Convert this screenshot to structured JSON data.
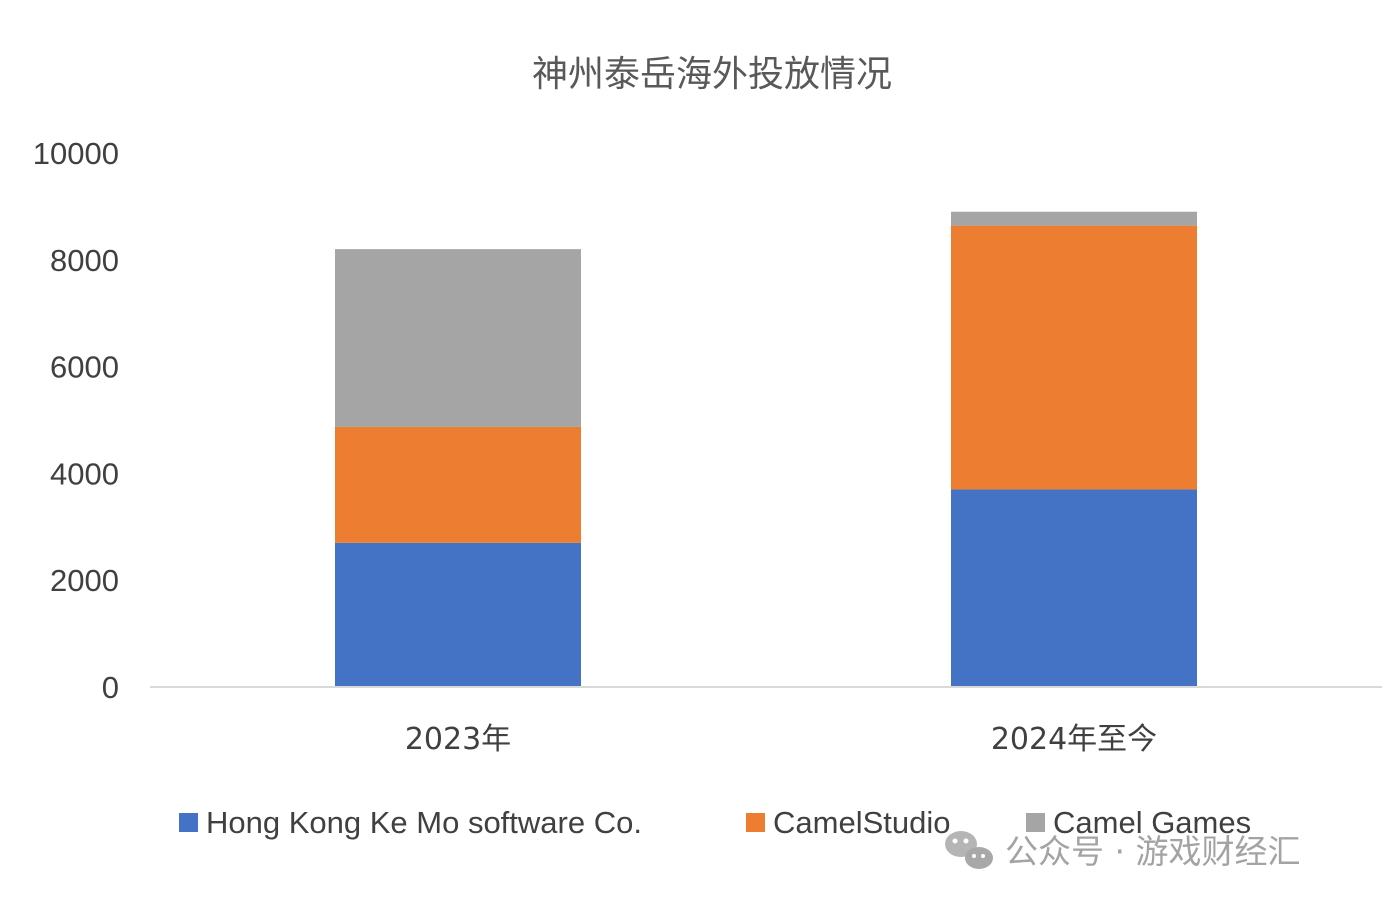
{
  "chart_data": {
    "type": "bar",
    "stacked": true,
    "title": "神州泰岳海外投放情况",
    "categories": [
      "2023年",
      "2024年至今"
    ],
    "series": [
      {
        "name": "Hong Kong Ke Mo software Co.",
        "color": "#4472C4",
        "values": [
          2700,
          3700
        ]
      },
      {
        "name": "CamelStudio",
        "color": "#ED7D31",
        "values": [
          2170,
          4940
        ]
      },
      {
        "name": "Camel Games",
        "color": "#A5A5A5",
        "values": [
          3330,
          260
        ]
      }
    ],
    "ylim": [
      0,
      10000
    ],
    "yticks": [
      0,
      2000,
      4000,
      6000,
      8000,
      10000
    ],
    "xlabel": "",
    "ylabel": "",
    "grid": false,
    "legend_position": "bottom"
  },
  "watermark": {
    "text": "公众号 · 游戏财经汇",
    "icon": "wechat-icon"
  }
}
